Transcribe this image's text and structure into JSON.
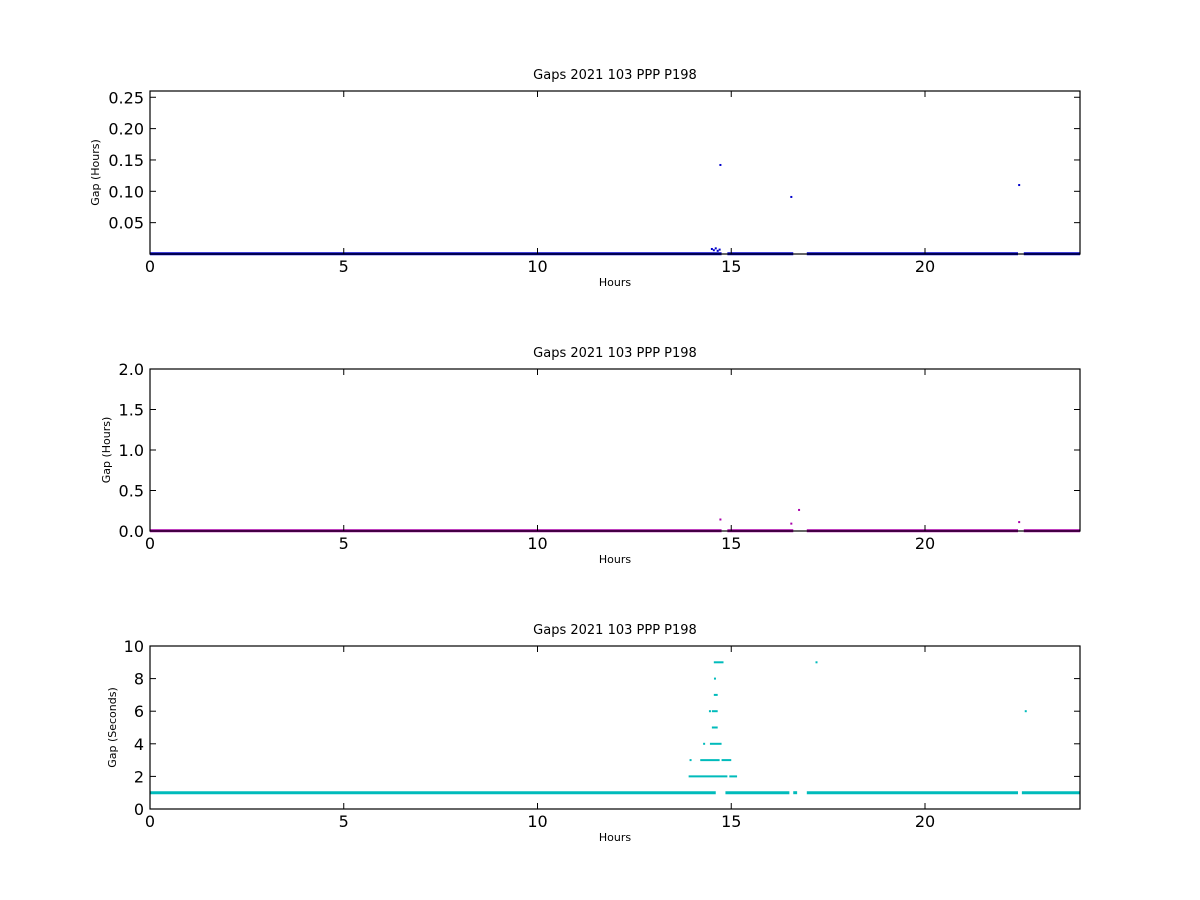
{
  "chart_data": [
    {
      "type": "scatter",
      "title": "Gaps 2021 103 PPP  P198",
      "xlabel": "Hours",
      "ylabel": "Gap (Hours)",
      "xlim": [
        0,
        24
      ],
      "ylim": [
        0,
        0.26
      ],
      "xticks": [
        0,
        5,
        10,
        15,
        20
      ],
      "yticks": [
        0.05,
        0.1,
        0.15,
        0.2,
        0.25
      ],
      "ytick_labels": [
        "0.05",
        "0.10",
        "0.15",
        "0.20",
        "0.25"
      ],
      "color": "#0000cc",
      "baseline": {
        "y": 0.0003,
        "segments": [
          [
            0,
            14.75
          ],
          [
            14.9,
            16.6
          ],
          [
            16.95,
            22.4
          ],
          [
            22.55,
            24
          ]
        ]
      },
      "points": [
        {
          "x": 14.72,
          "y": 0.142
        },
        {
          "x": 16.55,
          "y": 0.091
        },
        {
          "x": 22.43,
          "y": 0.11
        },
        {
          "x": 14.5,
          "y": 0.008
        },
        {
          "x": 14.55,
          "y": 0.006
        },
        {
          "x": 14.6,
          "y": 0.009
        },
        {
          "x": 14.65,
          "y": 0.005
        },
        {
          "x": 14.7,
          "y": 0.007
        }
      ]
    },
    {
      "type": "scatter",
      "title": "Gaps 2021 103 PPP  P198",
      "xlabel": "Hours",
      "ylabel": "Gap (Hours)",
      "xlim": [
        0,
        24
      ],
      "ylim": [
        0,
        2.0
      ],
      "xticks": [
        0,
        5,
        10,
        15,
        20
      ],
      "yticks": [
        0.0,
        0.5,
        1.0,
        1.5,
        2.0
      ],
      "ytick_labels": [
        "0.0",
        "0.5",
        "1.0",
        "1.5",
        "2.0"
      ],
      "color": "#aa00aa",
      "baseline": {
        "y": 0.003,
        "segments": [
          [
            0,
            14.75
          ],
          [
            14.9,
            16.6
          ],
          [
            16.95,
            22.4
          ],
          [
            22.55,
            24
          ]
        ]
      },
      "points": [
        {
          "x": 14.72,
          "y": 0.142
        },
        {
          "x": 16.55,
          "y": 0.091
        },
        {
          "x": 16.75,
          "y": 0.26
        },
        {
          "x": 22.43,
          "y": 0.11
        }
      ]
    },
    {
      "type": "scatter",
      "title": "Gaps 2021 103 PPP  P198",
      "xlabel": "Hours",
      "ylabel": "Gap (Seconds)",
      "xlim": [
        0,
        24
      ],
      "ylim": [
        0,
        10
      ],
      "xticks": [
        0,
        5,
        10,
        15,
        20
      ],
      "yticks": [
        0,
        2,
        4,
        6,
        8,
        10
      ],
      "ytick_labels": [
        "0",
        "2",
        "4",
        "6",
        "8",
        "10"
      ],
      "color": "#00bbbb",
      "baseline": {
        "y": 1,
        "segments": [
          [
            0,
            14.6
          ],
          [
            14.85,
            16.5
          ],
          [
            16.6,
            16.7
          ],
          [
            16.95,
            22.4
          ],
          [
            22.5,
            24
          ]
        ]
      },
      "runs": [
        {
          "y": 2,
          "x1": 13.9,
          "x2": 14.9
        },
        {
          "y": 2,
          "x1": 14.95,
          "x2": 15.15
        },
        {
          "y": 3,
          "x1": 14.2,
          "x2": 14.7
        },
        {
          "y": 3,
          "x1": 14.75,
          "x2": 15.0
        },
        {
          "y": 4,
          "x1": 14.45,
          "x2": 14.75
        },
        {
          "y": 5,
          "x1": 14.5,
          "x2": 14.65
        },
        {
          "y": 6,
          "x1": 14.5,
          "x2": 14.65
        },
        {
          "y": 7,
          "x1": 14.55,
          "x2": 14.65
        },
        {
          "y": 9,
          "x1": 14.55,
          "x2": 14.8
        }
      ],
      "points": [
        {
          "x": 13.95,
          "y": 3
        },
        {
          "x": 14.3,
          "y": 4
        },
        {
          "x": 14.45,
          "y": 6
        },
        {
          "x": 14.58,
          "y": 8
        },
        {
          "x": 17.2,
          "y": 9
        },
        {
          "x": 22.6,
          "y": 6
        }
      ]
    }
  ]
}
